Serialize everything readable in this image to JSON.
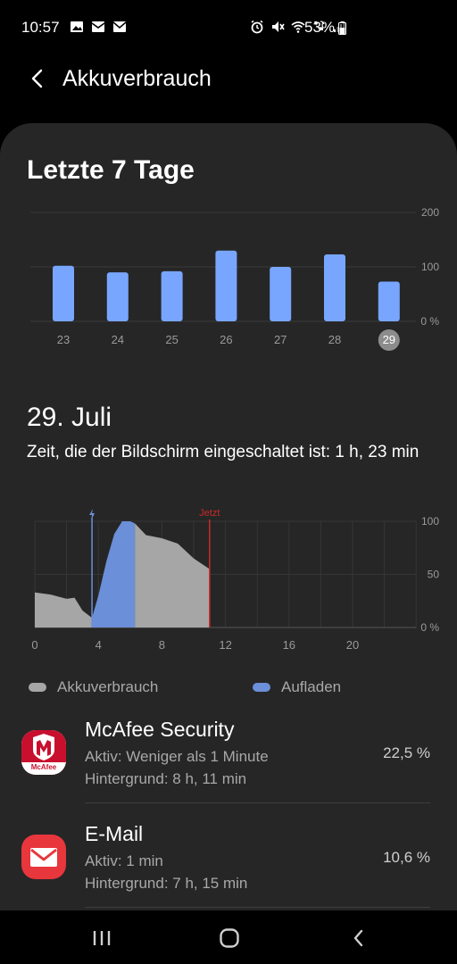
{
  "status": {
    "time": "10:57",
    "battery": "53%",
    "icons_left": [
      "gallery-icon",
      "mail-check-icon",
      "email-icon"
    ],
    "icons_right": [
      "alarm-icon",
      "mute-icon",
      "wifi-icon",
      "wifi-call-icon",
      "signal-icon"
    ]
  },
  "header": {
    "title": "Akkuverbrauch"
  },
  "weekly": {
    "title": "Letzte 7 Tage",
    "y_labels": [
      "200",
      "100",
      "0 %"
    ],
    "categories": [
      "23",
      "24",
      "25",
      "26",
      "27",
      "28",
      "29"
    ],
    "values": [
      102,
      90,
      92,
      130,
      100,
      123,
      73
    ],
    "selected": "29",
    "bar_color": "#78a6ff"
  },
  "daily": {
    "title": "29. Juli",
    "screen_time": "Zeit, die der Bildschirm eingeschaltet ist: 1 h, 23 min",
    "now_label": "Jetzt",
    "charge_icon": "bolt-icon",
    "x_labels": [
      "0",
      "4",
      "8",
      "12",
      "16",
      "20"
    ],
    "y_labels": [
      "100",
      "50",
      "0 %"
    ],
    "colors": {
      "usage": "#a6a6a6",
      "charging": "#6b8fd8",
      "now": "#c92a2a"
    }
  },
  "legend": {
    "usage": "Akkuverbrauch",
    "charging": "Aufladen"
  },
  "apps": [
    {
      "name": "McAfee Security",
      "active": "Aktiv: Weniger als 1 Minute",
      "background": "Hintergrund: 8 h, 11 min",
      "percent": "22,5 %",
      "icon": "mcafee-icon",
      "icon_text": "McAfee"
    },
    {
      "name": "E-Mail",
      "active": "Aktiv: 1 min",
      "background": "Hintergrund: 7 h, 15 min",
      "percent": "10,6 %",
      "icon": "email-app-icon"
    }
  ],
  "chart_data": [
    {
      "type": "bar",
      "title": "Letzte 7 Tage",
      "categories": [
        "23",
        "24",
        "25",
        "26",
        "27",
        "28",
        "29"
      ],
      "values": [
        102,
        90,
        92,
        130,
        100,
        123,
        73
      ],
      "ylim": [
        0,
        200
      ],
      "yticks": [
        "0 %",
        "100",
        "200"
      ],
      "grid": true
    },
    {
      "type": "area",
      "title": "29. Juli",
      "xlim": [
        0,
        24
      ],
      "xticks": [
        0,
        4,
        8,
        12,
        16,
        20
      ],
      "ylim": [
        0,
        100
      ],
      "yticks": [
        "0 %",
        "50",
        "100"
      ],
      "grid": true,
      "series": [
        {
          "name": "Akkuverbrauch",
          "x": [
            0,
            1,
            2,
            2.5,
            3,
            3.6
          ],
          "y": [
            33,
            31,
            27,
            28,
            16,
            9
          ]
        },
        {
          "name": "Aufladen",
          "x": [
            3.6,
            4,
            4.5,
            5,
            5.5,
            6,
            6.3
          ],
          "y": [
            9,
            30,
            62,
            88,
            100,
            100,
            98
          ]
        },
        {
          "name": "Akkuverbrauch",
          "x": [
            6.3,
            7,
            8,
            9,
            10,
            11
          ],
          "y": [
            98,
            87,
            84,
            79,
            65,
            55
          ]
        }
      ]
    }
  ]
}
